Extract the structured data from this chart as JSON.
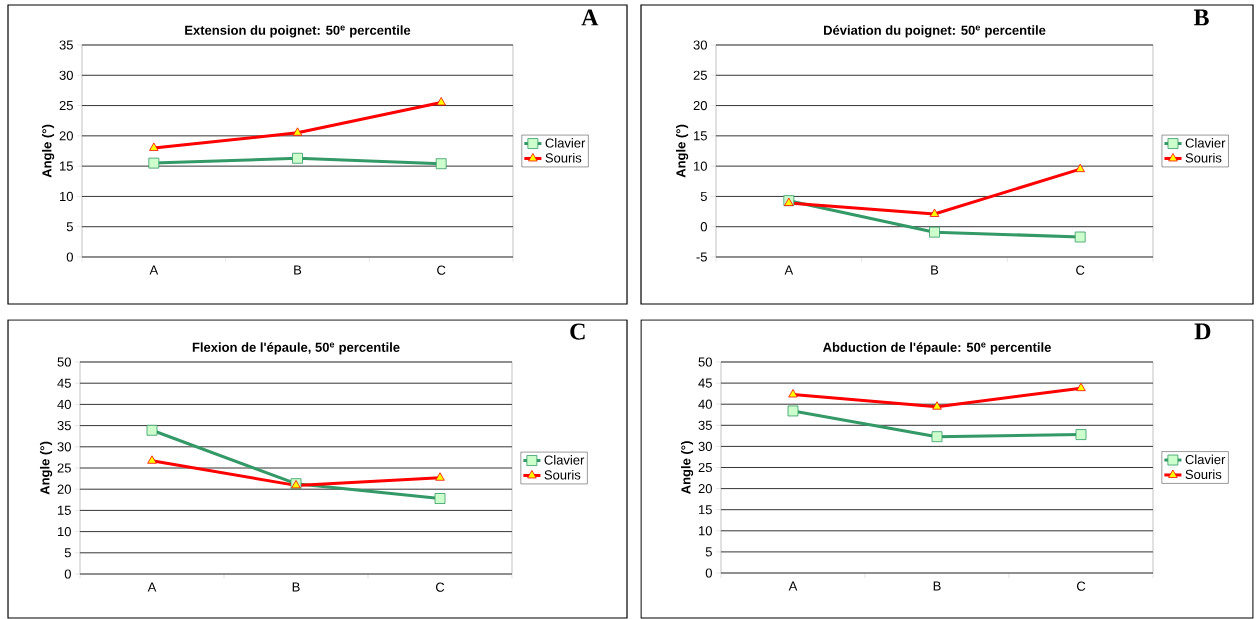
{
  "chart_data": [
    {
      "type": "line",
      "title": "Extension du poignet: 50$^{e}$ percentile",
      "ylabel": "Angle (°)",
      "categories": [
        "A",
        "B",
        "C"
      ],
      "series": [
        {
          "name": "Clavier",
          "color": "#339966",
          "marker": "square",
          "values": [
            15.5,
            16.3,
            15.4
          ]
        },
        {
          "name": "Souris",
          "color": "#ff0000",
          "marker": "triangle",
          "values": [
            18.0,
            20.5,
            25.5
          ]
        }
      ],
      "ylim": [
        0,
        35
      ],
      "yticks": [
        0,
        5,
        10,
        15,
        20,
        25,
        30,
        35
      ],
      "grid": "y",
      "legend": "right",
      "annotations": [
        "A"
      ]
    },
    {
      "type": "line",
      "title": "Déviation du poignet: 50$^{e}$ percentile",
      "ylabel": "Angle (°)",
      "categories": [
        "A",
        "B",
        "C"
      ],
      "series": [
        {
          "name": "Clavier",
          "color": "#339966",
          "marker": "square",
          "values": [
            4.3,
            -0.9,
            -1.7
          ]
        },
        {
          "name": "Souris",
          "color": "#ff0000",
          "marker": "triangle",
          "values": [
            3.9,
            2.1,
            9.5
          ]
        }
      ],
      "ylim": [
        -5,
        30
      ],
      "yticks": [
        -5,
        0,
        5,
        10,
        15,
        20,
        25,
        30
      ],
      "grid": "y",
      "legend": "right",
      "annotations": [
        "B"
      ]
    },
    {
      "type": "line",
      "title": "Flexion de l'épaule, 50$^{e}$ percentile",
      "ylabel": "Angle (°)",
      "categories": [
        "A",
        "B",
        "C"
      ],
      "series": [
        {
          "name": "Clavier",
          "color": "#339966",
          "marker": "square",
          "values": [
            33.9,
            21.3,
            17.8
          ]
        },
        {
          "name": "Souris",
          "color": "#ff0000",
          "marker": "triangle",
          "values": [
            26.7,
            20.9,
            22.7
          ]
        }
      ],
      "ylim": [
        0,
        50
      ],
      "yticks": [
        0,
        5,
        10,
        15,
        20,
        25,
        30,
        35,
        40,
        45,
        50
      ],
      "grid": "y",
      "legend": "right",
      "annotations": [
        "C"
      ]
    },
    {
      "type": "line",
      "title": "Abduction de l'épaule: 50$^{e}$ percentile",
      "ylabel": "Angle (°)",
      "categories": [
        "A",
        "B",
        "C"
      ],
      "series": [
        {
          "name": "Clavier",
          "color": "#339966",
          "marker": "square",
          "values": [
            38.4,
            32.3,
            32.8
          ]
        },
        {
          "name": "Souris",
          "color": "#ff0000",
          "marker": "triangle",
          "values": [
            42.3,
            39.4,
            43.8
          ]
        }
      ],
      "ylim": [
        0,
        50
      ],
      "yticks": [
        0,
        5,
        10,
        15,
        20,
        25,
        30,
        35,
        40,
        45,
        50
      ],
      "grid": "y",
      "legend": "right",
      "annotations": [
        "D"
      ]
    }
  ]
}
